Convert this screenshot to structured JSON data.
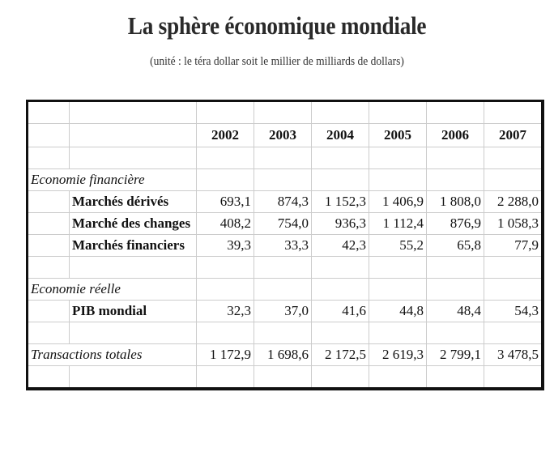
{
  "title": "La sphère économique mondiale",
  "subtitle": "(unité : le téra dollar soit le millier de milliards de dollars)",
  "years": [
    "2002",
    "2003",
    "2004",
    "2005",
    "2006",
    "2007"
  ],
  "sections": {
    "financiere": {
      "label": "Economie financière",
      "rows": [
        {
          "label": "Marchés dérivés",
          "values": [
            "693,1",
            "874,3",
            "1 152,3",
            "1 406,9",
            "1 808,0",
            "2 288,0"
          ]
        },
        {
          "label": "Marché des changes",
          "values": [
            "408,2",
            "754,0",
            "936,3",
            "1 112,4",
            "876,9",
            "1 058,3"
          ]
        },
        {
          "label": "Marchés financiers",
          "values": [
            "39,3",
            "33,3",
            "42,3",
            "55,2",
            "65,8",
            "77,9"
          ]
        }
      ]
    },
    "reelle": {
      "label": "Economie réelle",
      "rows": [
        {
          "label": "PIB mondial",
          "values": [
            "32,3",
            "37,0",
            "41,6",
            "44,8",
            "48,4",
            "54,3"
          ]
        }
      ]
    }
  },
  "total": {
    "label": "Transactions totales",
    "values": [
      "1 172,9",
      "1 698,6",
      "2 172,5",
      "2 619,3",
      "2 799,1",
      "3 478,5"
    ]
  }
}
